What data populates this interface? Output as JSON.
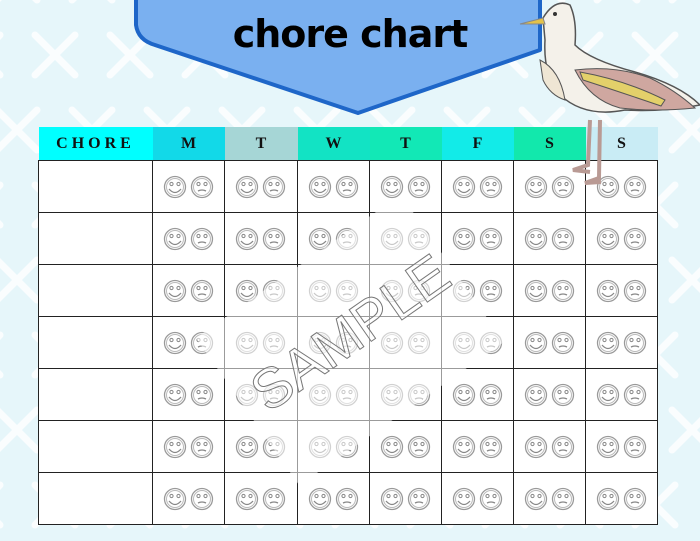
{
  "title": "chore chart",
  "watermark": "SAMPLE",
  "columns": [
    {
      "label": "CHORE",
      "color": "#00FFFF"
    },
    {
      "label": "M",
      "color": "#12D9E8"
    },
    {
      "label": "T",
      "color": "#A6D6D6"
    },
    {
      "label": "W",
      "color": "#12E3C4"
    },
    {
      "label": "T",
      "color": "#12E8B6"
    },
    {
      "label": "F",
      "color": "#12EBE8"
    },
    {
      "label": "S",
      "color": "#12E8AC"
    },
    {
      "label": "S",
      "color": "#C9ECF5"
    }
  ],
  "rows": [
    "",
    "",
    "",
    "",
    "",
    "",
    ""
  ],
  "colors": {
    "background": "#E6F6FA",
    "banner": "#7AB0F0",
    "banner_border": "#1E66C8"
  }
}
